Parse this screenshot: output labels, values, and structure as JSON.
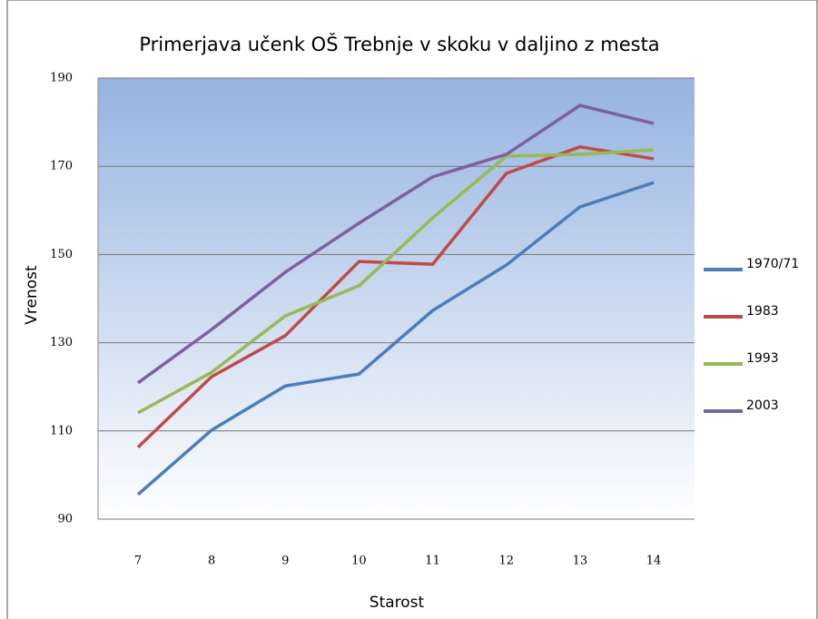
{
  "chart_data": {
    "type": "line",
    "title": "Primerjava učenk OŠ Trebnje v skoku v daljino z mesta",
    "x_label": "Starost",
    "y_label": "Vrenost",
    "categories": [
      "7",
      "8",
      "9",
      "10",
      "11",
      "12",
      "13",
      "14"
    ],
    "series": [
      {
        "name": "1970/71",
        "color": "#4a7ebb",
        "values": [
          95.6,
          110.2,
          120.2,
          122.9,
          137.3,
          147.6,
          160.8,
          166.3
        ]
      },
      {
        "name": "1983",
        "color": "#be4b48",
        "values": [
          106.3,
          122.3,
          131.6,
          148.4,
          147.8,
          168.4,
          174.4,
          171.7
        ]
      },
      {
        "name": "1993",
        "color": "#98b954",
        "values": [
          114.1,
          123.3,
          136.1,
          142.9,
          158.3,
          172.3,
          172.7,
          173.7
        ]
      },
      {
        "name": "2003",
        "color": "#7d60a0",
        "values": [
          120.9,
          133.0,
          146.0,
          157.1,
          167.6,
          172.7,
          183.8,
          179.7
        ]
      }
    ],
    "ylim": [
      90,
      190
    ],
    "yticks": [
      90,
      110,
      130,
      150,
      170,
      190
    ],
    "grid": true,
    "legend": "right"
  }
}
